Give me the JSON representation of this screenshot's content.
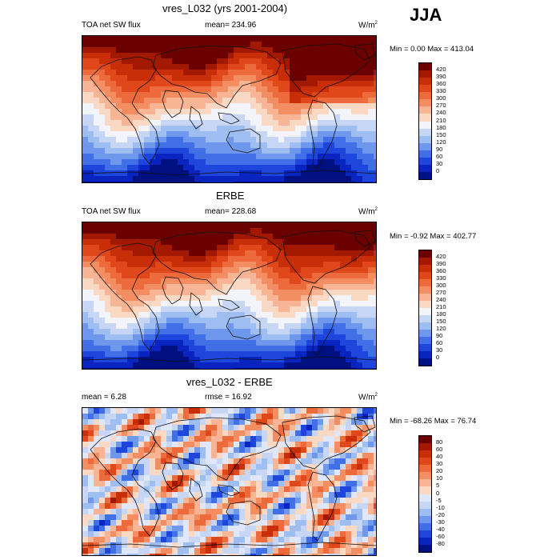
{
  "season": "JJA",
  "panels": [
    {
      "id": "model",
      "title": "vres_L032 (yrs 2001-2004)",
      "left_label": "TOA net SW flux",
      "center_label": "mean= 234.96",
      "units": "W/m",
      "units_sup": "2",
      "stats": "Min =   0.00 Max = 413.04",
      "scale": "absolute",
      "colorbar_labels": [
        "420",
        "390",
        "360",
        "330",
        "300",
        "270",
        "240",
        "210",
        "180",
        "150",
        "120",
        "90",
        "60",
        "30",
        "0"
      ]
    },
    {
      "id": "obs",
      "title": "ERBE",
      "left_label": "TOA net SW flux",
      "center_label": "mean= 228.68",
      "units": "W/m",
      "units_sup": "2",
      "stats": "Min =  -0.92 Max = 402.77",
      "scale": "absolute",
      "colorbar_labels": [
        "420",
        "390",
        "360",
        "330",
        "300",
        "270",
        "240",
        "210",
        "180",
        "150",
        "120",
        "90",
        "60",
        "30",
        "0"
      ]
    },
    {
      "id": "diff",
      "title": "vres_L032 - ERBE",
      "left_label": "mean =   6.28",
      "center_label": "rmse =  16.92",
      "units": "W/m",
      "units_sup": "2",
      "stats": "Min = -68.26 Max =  76.74",
      "scale": "difference",
      "colorbar_labels": [
        "80",
        "60",
        "40",
        "30",
        "20",
        "10",
        "5",
        "0",
        "-5",
        "-10",
        "-20",
        "-30",
        "-40",
        "-60",
        "-80"
      ]
    }
  ],
  "colors": {
    "absolute": [
      "#6b0000",
      "#a31800",
      "#c82e08",
      "#e0481c",
      "#ec6a3c",
      "#f38e62",
      "#f8b596",
      "#fad9c4",
      "#f2f4fa",
      "#c6d6f4",
      "#9ebdf0",
      "#6f98ec",
      "#416fe6",
      "#1e46dc",
      "#0a24c2",
      "#00107e"
    ],
    "difference": [
      "#6b0000",
      "#a31800",
      "#c82e08",
      "#e0481c",
      "#ec6a3c",
      "#f38e62",
      "#f8b596",
      "#fad9c4",
      "#dfe7f8",
      "#c6d6f4",
      "#9ebdf0",
      "#6f98ec",
      "#416fe6",
      "#1e46dc",
      "#0a24c2",
      "#00107e"
    ]
  }
}
